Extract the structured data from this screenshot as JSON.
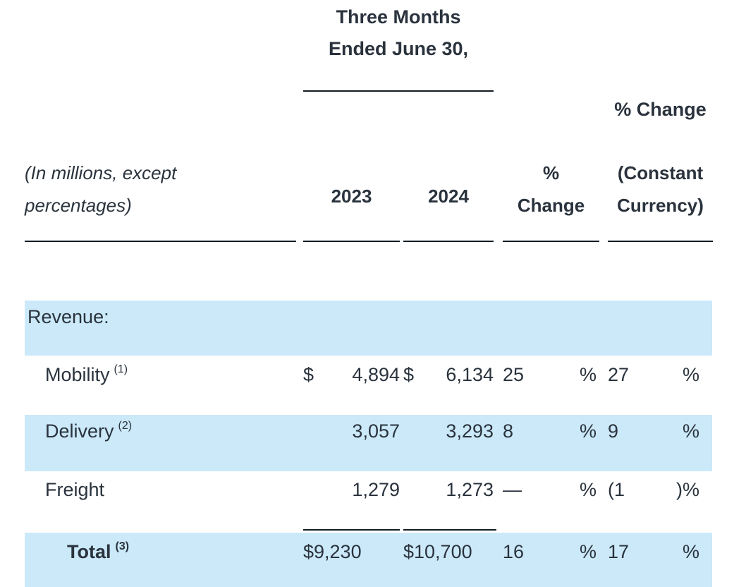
{
  "title": {
    "line1": "Three Months",
    "line2": "Ended June 30,"
  },
  "columns": {
    "note_line1": "(In millions, except",
    "note_line2": "percentages)",
    "y2023": "2023",
    "y2024": "2024",
    "pct_line1": "%",
    "pct_line2": "Change",
    "cc_top": "% Change",
    "cc_line1": "(Constant",
    "cc_line2": "Currency)"
  },
  "table": {
    "section": "Revenue:",
    "rows": [
      {
        "label": "Mobility",
        "sup": "(1)",
        "d2023": "$",
        "v2023": "4,894",
        "d2024": "$",
        "v2024": "6,134",
        "pct": "25",
        "pct_sym": "%",
        "cc": "27",
        "cc_sym": "%"
      },
      {
        "label": "Delivery",
        "sup": "(2)",
        "d2023": "",
        "v2023": "3,057",
        "d2024": "",
        "v2024": "3,293",
        "pct": "8",
        "pct_sym": "%",
        "cc": "9",
        "cc_sym": "%"
      },
      {
        "label": "Freight",
        "sup": "",
        "d2023": "",
        "v2023": "1,279",
        "d2024": "",
        "v2024": "1,273",
        "pct": "—",
        "pct_sym": "%",
        "cc": "(1",
        "cc_sym": ")%"
      }
    ],
    "total": {
      "label": "Total",
      "sup": "(3)",
      "v2023": "$9,230",
      "v2024": "$10,700",
      "pct": "16",
      "pct_sym": "%",
      "cc": "17",
      "cc_sym": "%"
    }
  },
  "colors": {
    "row_highlight": "#cbe9f9",
    "text": "#2a333d",
    "rule": "#131c24"
  }
}
